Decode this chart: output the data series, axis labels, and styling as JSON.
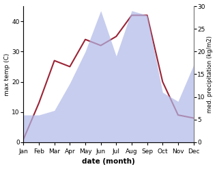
{
  "months": [
    "Jan",
    "Feb",
    "Mar",
    "Apr",
    "May",
    "Jun",
    "Jul",
    "Aug",
    "Sep",
    "Oct",
    "Nov",
    "Dec"
  ],
  "temperature": [
    1,
    13,
    27,
    25,
    34,
    32,
    35,
    42,
    42,
    20,
    9,
    8
  ],
  "precipitation": [
    6,
    6,
    7,
    13,
    20,
    29,
    19,
    29,
    28,
    11,
    9,
    17
  ],
  "temp_color": "#9b2335",
  "precip_fill_color": "#b0b8e8",
  "xlabel": "date (month)",
  "ylabel_left": "max temp (C)",
  "ylabel_right": "med. precipitation (kg/m2)",
  "ylim_left": [
    0,
    45
  ],
  "ylim_right": [
    0,
    30
  ],
  "yticks_left": [
    0,
    10,
    20,
    30,
    40
  ],
  "yticks_right": [
    0,
    5,
    10,
    15,
    20,
    25,
    30
  ]
}
